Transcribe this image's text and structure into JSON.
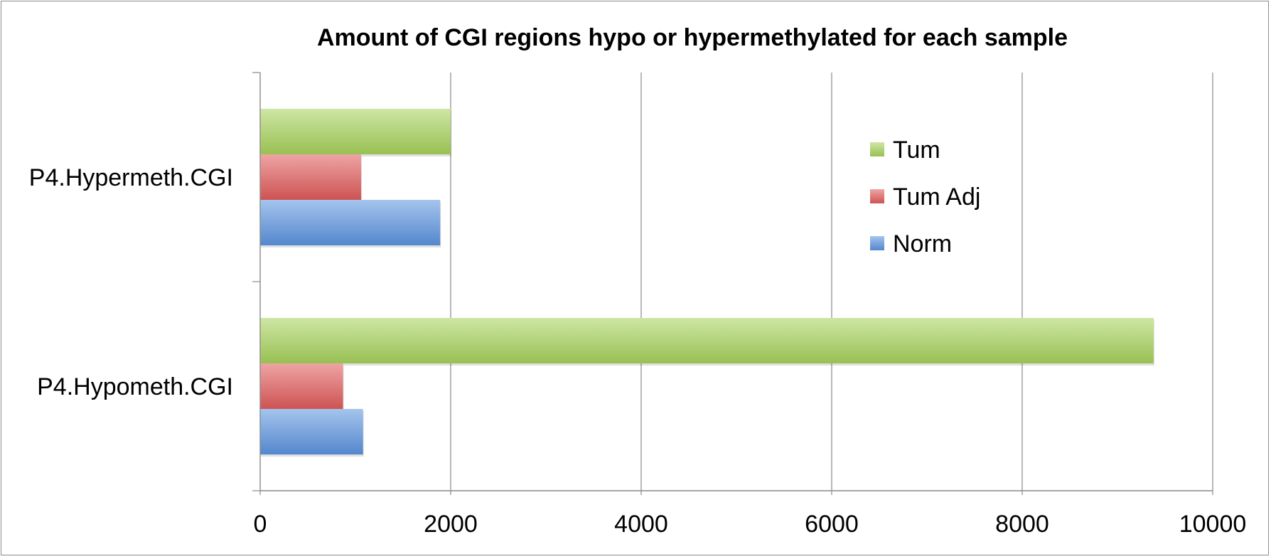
{
  "chart_data": {
    "type": "bar",
    "orientation": "horizontal",
    "title": "Amount of CGI regions hypo or hypermethylated for each sample",
    "categories": [
      "P4.Hypermeth.CGI",
      "P4.Hypometh.CGI"
    ],
    "series": [
      {
        "name": "Tum",
        "values": [
          2000,
          9380
        ],
        "color": "#a6d15a"
      },
      {
        "name": "Tum Adj",
        "values": [
          1060,
          870
        ],
        "color": "#e05a5a"
      },
      {
        "name": "Norm",
        "values": [
          1890,
          1080
        ],
        "color": "#5b93df"
      }
    ],
    "xlim": [
      0,
      10000
    ],
    "xticks": [
      "0",
      "2000",
      "4000",
      "6000",
      "8000",
      "10000"
    ],
    "xlabel": "",
    "ylabel": "",
    "grid": "vertical",
    "legend_position": "right"
  }
}
